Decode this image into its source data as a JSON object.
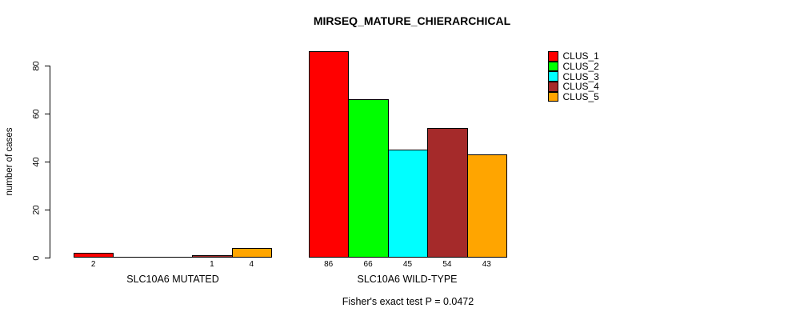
{
  "title": "MIRSEQ_MATURE_CHIERARCHICAL",
  "chart_data": {
    "type": "bar",
    "title": "MIRSEQ_MATURE_CHIERARCHICAL",
    "xlabel": "",
    "ylabel": "number of cases",
    "ylim": [
      0,
      86
    ],
    "yticks": [
      0,
      20,
      40,
      60,
      80
    ],
    "grid": false,
    "legend_position": "top-right",
    "categories": [
      "SLC10A6 MUTATED",
      "SLC10A6 WILD-TYPE"
    ],
    "series": [
      {
        "name": "CLUS_1",
        "color": "#FF0000",
        "values": [
          2,
          86
        ]
      },
      {
        "name": "CLUS_2",
        "color": "#00FF00",
        "values": [
          0,
          66
        ]
      },
      {
        "name": "CLUS_3",
        "color": "#00FFFF",
        "values": [
          0,
          45
        ]
      },
      {
        "name": "CLUS_4",
        "color": "#A52A2A",
        "values": [
          1,
          54
        ]
      },
      {
        "name": "CLUS_5",
        "color": "#FFA500",
        "values": [
          4,
          43
        ]
      }
    ],
    "bar_value_labels_note": "value printed under each bar; zero values have no label",
    "annotation": "Fisher's exact test P = 0.0472"
  }
}
